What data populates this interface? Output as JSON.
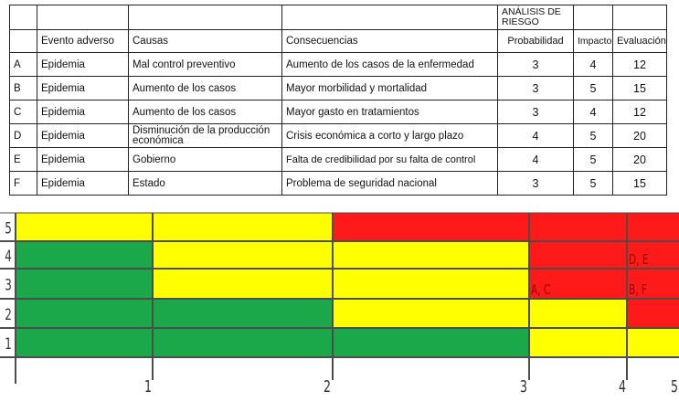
{
  "table": {
    "group_header": "ANÁLISIS DE RIESGO",
    "headers": [
      "",
      "Evento adverso",
      "Causas",
      "Consecuencias",
      "Probabilidad",
      "Impacto",
      "Evaluación"
    ],
    "rows": [
      {
        "id": "A",
        "evento": "Epidemia",
        "causa": "Mal control preventivo",
        "consecuencia": "Aumento de los casos de la enfermedad",
        "probabilidad": "3",
        "impacto": "4",
        "evaluacion": "12"
      },
      {
        "id": "B",
        "evento": "Epidemia",
        "causa": "Aumento de los casos",
        "consecuencia": "Mayor morbilidad y mortalidad",
        "probabilidad": "3",
        "impacto": "5",
        "evaluacion": "15"
      },
      {
        "id": "C",
        "evento": "Epidemia",
        "causa": "Aumento de los casos",
        "consecuencia": "Mayor gasto en tratamientos",
        "probabilidad": "3",
        "impacto": "4",
        "evaluacion": "12"
      },
      {
        "id": "D",
        "evento": "Epidemia",
        "causa": "Disminución de la producción económica",
        "consecuencia": "Crisis económica a corto y largo plazo",
        "probabilidad": "4",
        "impacto": "5",
        "evaluacion": "20"
      },
      {
        "id": "E",
        "evento": "Epidemia",
        "causa": "Gobierno",
        "consecuencia": "Falta de credibilidad por su falta de control",
        "probabilidad": "4",
        "impacto": "5",
        "evaluacion": "20"
      },
      {
        "id": "F",
        "evento": "Epidemia",
        "causa": "Estado",
        "consecuencia": "Problema de seguridad nacional",
        "probabilidad": "3",
        "impacto": "5",
        "evaluacion": "15"
      }
    ]
  },
  "matrix": {
    "colors": {
      "green": "#1aa84a",
      "yellow": "#ffff00",
      "red": "#ff1a1a",
      "line": "#4d4d4d",
      "label": "#333333",
      "mark": "#8b0000"
    },
    "y_labels": [
      "5",
      "4",
      "3",
      "2",
      "1"
    ],
    "x_labels": [
      "1",
      "2",
      "3",
      "4",
      "5"
    ],
    "cells": [
      [
        "yellow",
        "yellow",
        "red",
        "red",
        "red"
      ],
      [
        "green",
        "yellow",
        "yellow",
        "red",
        "red"
      ],
      [
        "green",
        "yellow",
        "yellow",
        "red",
        "red"
      ],
      [
        "green",
        "green",
        "yellow",
        "yellow",
        "red"
      ],
      [
        "green",
        "green",
        "green",
        "yellow",
        "yellow"
      ]
    ],
    "markers": [
      {
        "text": "D, E",
        "row": 1,
        "col": 4
      },
      {
        "text": "A, C",
        "row": 2,
        "col": 3
      },
      {
        "text": "B, F",
        "row": 2,
        "col": 4
      }
    ]
  }
}
